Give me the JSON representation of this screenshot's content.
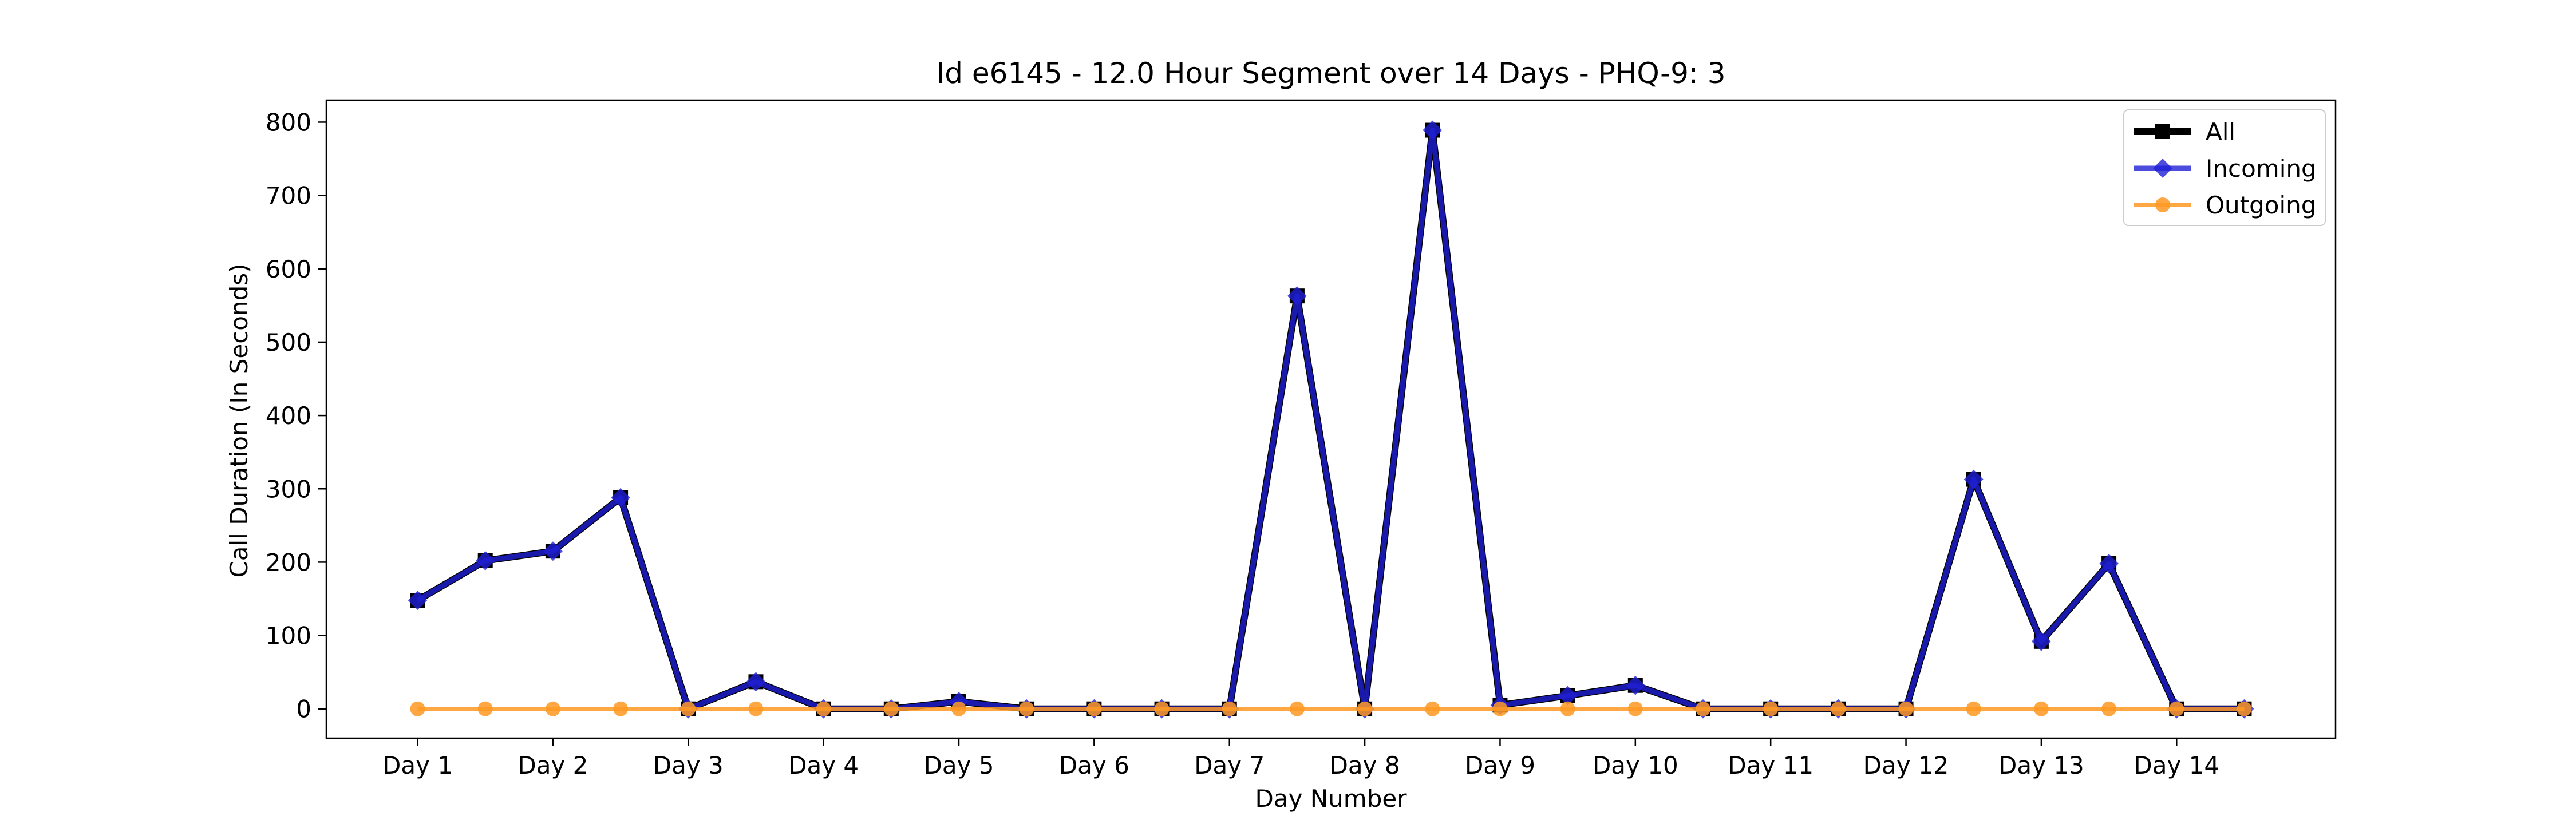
{
  "chart_data": {
    "type": "line",
    "title": "Id e6145 - 12.0 Hour Segment over 14 Days - PHQ-9: 3",
    "xlabel": "Day Number",
    "ylabel": "Call Duration (In Seconds)",
    "x_tick_labels": [
      "Day 1",
      "Day 2",
      "Day 3",
      "Day 4",
      "Day 5",
      "Day 6",
      "Day 7",
      "Day 8",
      "Day 9",
      "Day 10",
      "Day 11",
      "Day 12",
      "Day 13",
      "Day 14"
    ],
    "x_tick_positions": [
      0,
      2,
      4,
      6,
      8,
      10,
      12,
      14,
      16,
      18,
      20,
      22,
      24,
      26
    ],
    "x": [
      0,
      1,
      2,
      3,
      4,
      5,
      6,
      7,
      8,
      9,
      10,
      11,
      12,
      13,
      14,
      15,
      16,
      17,
      18,
      19,
      20,
      21,
      22,
      23,
      24,
      25,
      26,
      27
    ],
    "xlim": [
      -1.35,
      28.35
    ],
    "ylim": [
      -40,
      830
    ],
    "y_ticks": [
      0,
      100,
      200,
      300,
      400,
      500,
      600,
      700,
      800
    ],
    "grid": false,
    "legend_position": "top-right",
    "series": [
      {
        "name": "All",
        "color": "#000000",
        "marker": "square",
        "values": [
          148,
          202,
          215,
          288,
          0,
          37,
          0,
          0,
          10,
          0,
          0,
          0,
          0,
          563,
          0,
          789,
          5,
          18,
          32,
          0,
          0,
          0,
          0,
          313,
          92,
          198,
          0,
          0
        ]
      },
      {
        "name": "Incoming",
        "color": "#1f1fd6",
        "marker": "diamond",
        "values": [
          148,
          202,
          215,
          288,
          0,
          37,
          0,
          0,
          10,
          0,
          0,
          0,
          0,
          563,
          0,
          789,
          5,
          18,
          32,
          0,
          0,
          0,
          0,
          313,
          92,
          198,
          0,
          0
        ]
      },
      {
        "name": "Outgoing",
        "color": "#ff9922",
        "marker": "circle",
        "values": [
          0,
          0,
          0,
          0,
          0,
          0,
          0,
          0,
          0,
          0,
          0,
          0,
          0,
          0,
          0,
          0,
          0,
          0,
          0,
          0,
          0,
          0,
          0,
          0,
          0,
          0,
          0,
          0
        ]
      }
    ]
  }
}
